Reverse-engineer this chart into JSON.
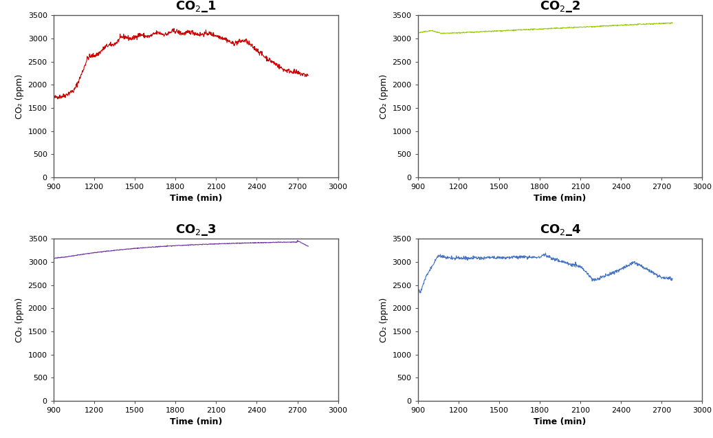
{
  "xlabel": "Time (min)",
  "ylabel": "CO₂ (ppm)",
  "xlim": [
    900,
    3000
  ],
  "ylim": [
    0,
    3500
  ],
  "xticks": [
    900,
    1200,
    1500,
    1800,
    2100,
    2400,
    2700,
    3000
  ],
  "yticks": [
    0,
    500,
    1000,
    1500,
    2000,
    2500,
    3000,
    3500
  ],
  "color1": "#CC0000",
  "color2": "#99CC00",
  "color3": "#7030A0",
  "color4": "#4472C4",
  "bg_color": "#FFFFFF",
  "linewidth": 0.8,
  "title_fontsize": 13,
  "label_fontsize": 9,
  "tick_fontsize": 8,
  "titles": [
    "CO$_2$_1",
    "CO$_2$_2",
    "CO$_2$_3",
    "CO$_2$_4"
  ]
}
